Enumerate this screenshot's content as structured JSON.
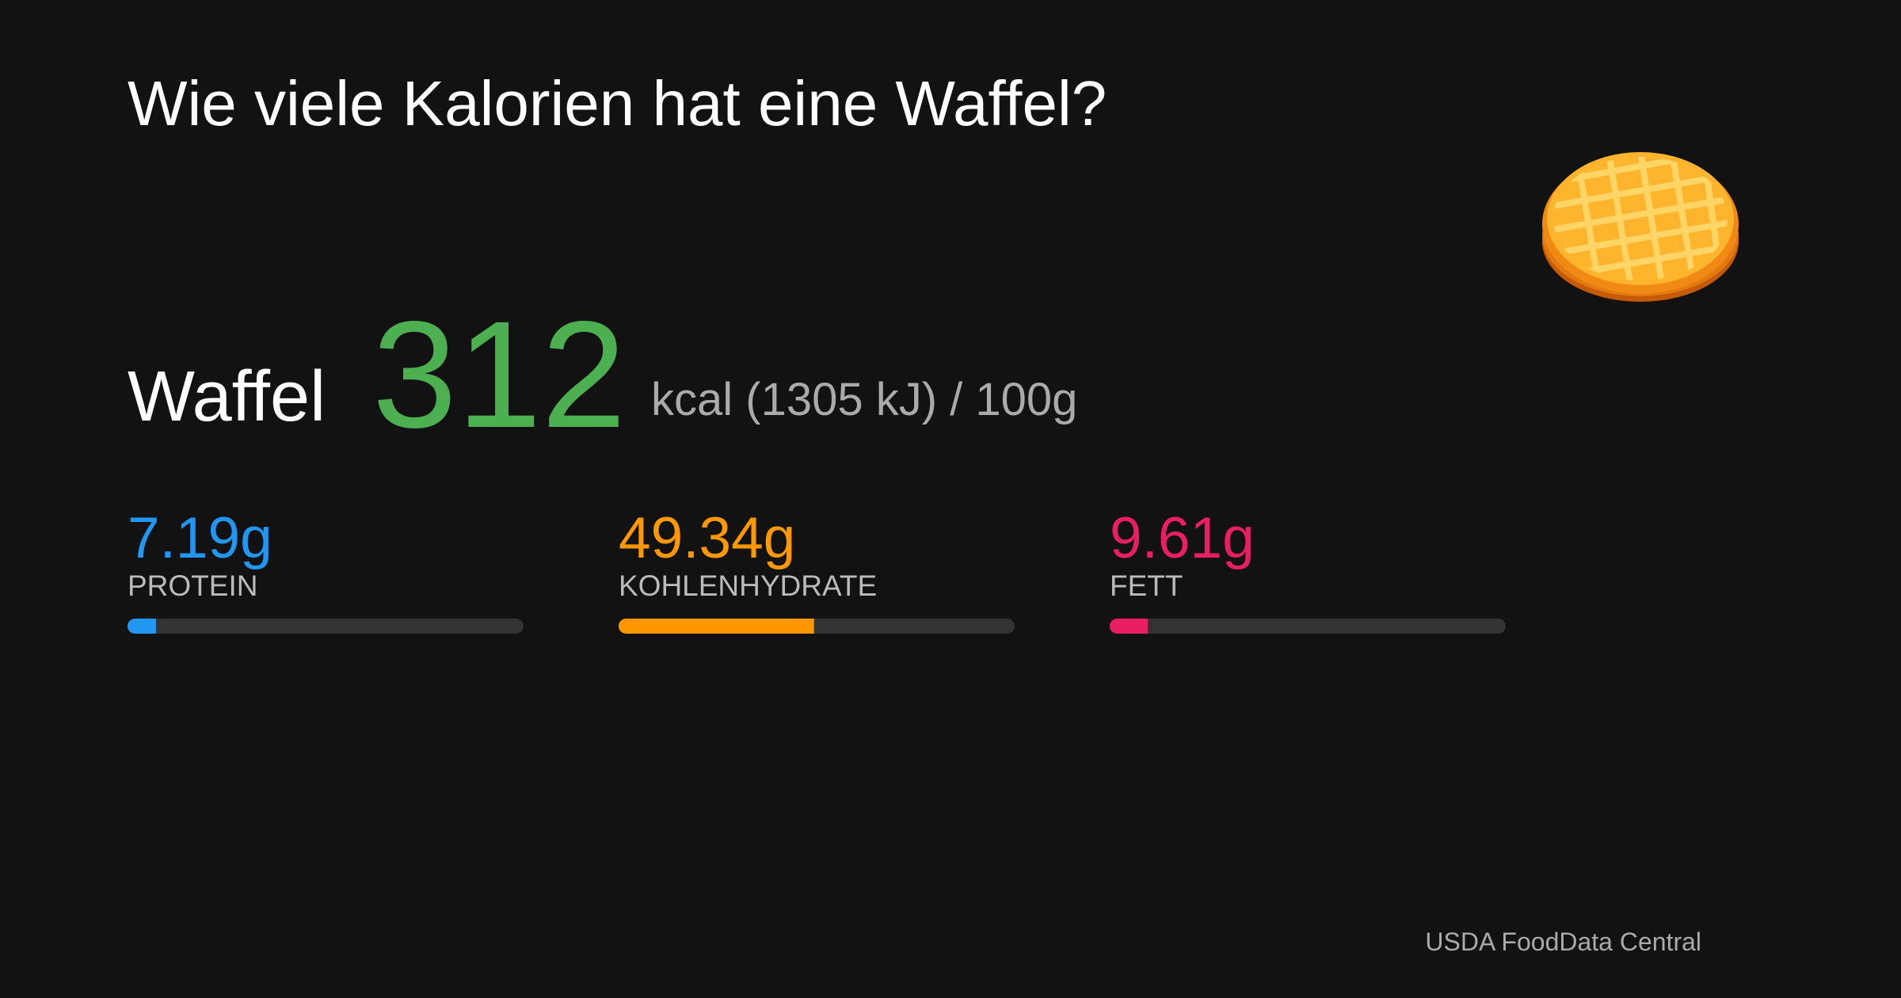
{
  "header": {
    "title": "Wie viele Kalorien hat eine Waffel?"
  },
  "food": {
    "name": "Waffel",
    "kcal": "312",
    "unit_text": "kcal (1305 kJ) / 100g"
  },
  "nutrients": {
    "xlim": [
      0,
      100
    ],
    "track_color": "#333333",
    "items": [
      {
        "value": 7.19,
        "label": "7.19g",
        "name": "PROTEIN",
        "color": "#2196f3"
      },
      {
        "value": 49.34,
        "label": "49.34g",
        "name": "KOHLENHYDRATE",
        "color": "#ff9800"
      },
      {
        "value": 9.61,
        "label": "9.61g",
        "name": "FETT",
        "color": "#e91e63"
      }
    ]
  },
  "source": "USDA FoodData Central"
}
